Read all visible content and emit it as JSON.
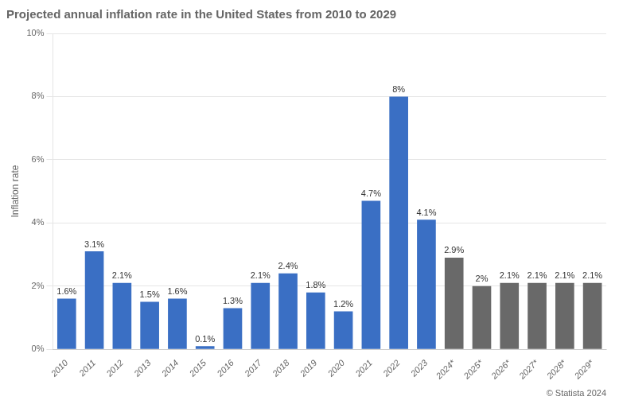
{
  "chart_data": {
    "type": "bar",
    "title": "Projected annual inflation rate in the United States from 2010 to 2029",
    "ylabel": "Inflation rate",
    "categories": [
      "2010",
      "2011",
      "2012",
      "2013",
      "2014",
      "2015",
      "2016",
      "2017",
      "2018",
      "2019",
      "2020",
      "2021",
      "2022",
      "2023",
      "2024*",
      "2025*",
      "2026*",
      "2027*",
      "2028*",
      "2029*"
    ],
    "values": [
      1.6,
      3.1,
      2.1,
      1.5,
      1.6,
      0.1,
      1.3,
      2.1,
      2.4,
      1.8,
      1.2,
      4.7,
      8.0,
      4.1,
      2.9,
      2.0,
      2.1,
      2.1,
      2.1,
      2.1
    ],
    "value_labels": [
      "1.6%",
      "3.1%",
      "2.1%",
      "1.5%",
      "1.6%",
      "0.1%",
      "1.3%",
      "2.1%",
      "2.4%",
      "1.8%",
      "1.2%",
      "4.7%",
      "8%",
      "4.1%",
      "2.9%",
      "2%",
      "2.1%",
      "2.1%",
      "2.1%",
      "2.1%"
    ],
    "data_labels": true,
    "colors": [
      "#3a6fc4",
      "#3a6fc4",
      "#3a6fc4",
      "#3a6fc4",
      "#3a6fc4",
      "#3a6fc4",
      "#3a6fc4",
      "#3a6fc4",
      "#3a6fc4",
      "#3a6fc4",
      "#3a6fc4",
      "#3a6fc4",
      "#3a6fc4",
      "#3a6fc4",
      "#696969",
      "#696969",
      "#696969",
      "#696969",
      "#696969",
      "#696969"
    ],
    "ylim": [
      0,
      10
    ],
    "yticks": [
      {
        "value": 0,
        "label": "0%"
      },
      {
        "value": 2,
        "label": "2%"
      },
      {
        "value": 4,
        "label": "4%"
      },
      {
        "value": 6,
        "label": "6%"
      },
      {
        "value": 8,
        "label": "8%"
      },
      {
        "value": 10,
        "label": "10%"
      }
    ],
    "grid": true,
    "annotations": [
      "© Statista 2024"
    ]
  }
}
